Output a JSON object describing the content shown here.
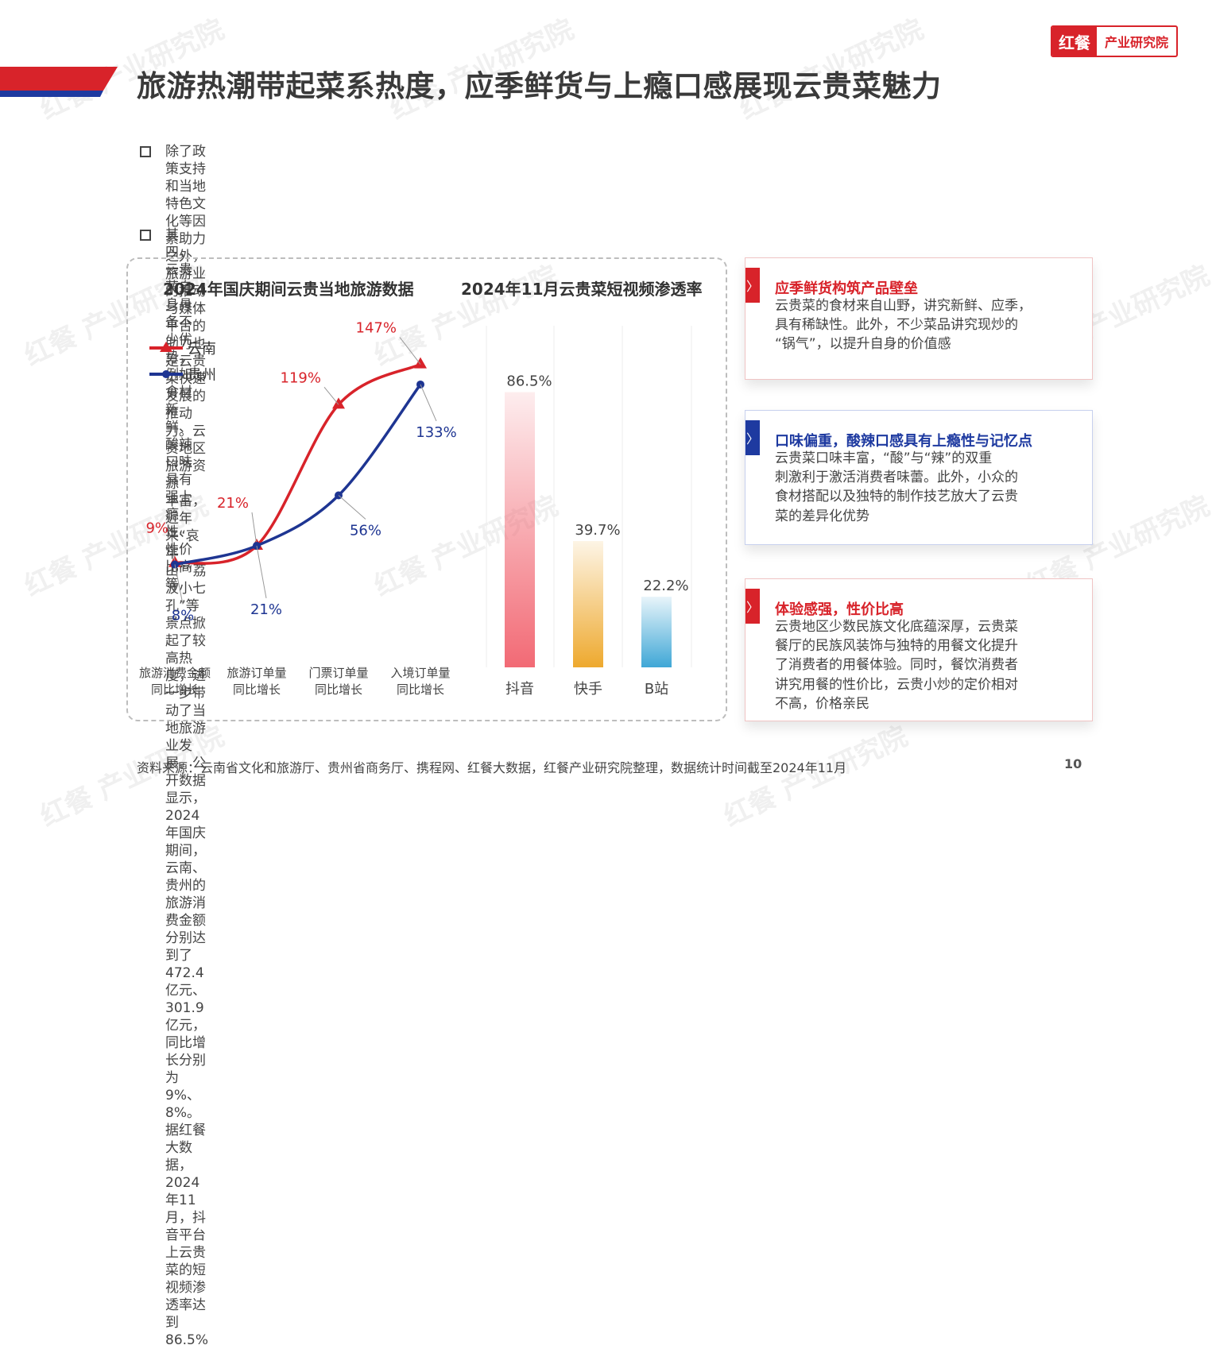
{
  "header": {
    "title": "旅游热潮带起菜系热度，应季鲜货与上瘾口感展现云贵菜魅力",
    "logo_mark": "红餐",
    "logo_text": "产业研究院",
    "accent_color": "#d8232a",
    "accent_secondary": "#1e3aa0"
  },
  "bullets": [
    {
      "lines": [
        "除了政策支持和当地特色文化等因素助力之外，旅游业的推动与媒体平台的助力也是云贵菜快速发展的推动力。云贵地区旅游资源",
        "丰富，近年来“哀牢山”“荔波小七孔”等景点掀起了较高热度，进一步带动了当地旅游业发展。公开数据显示，2024年国庆期间，",
        "云南、贵州的旅游消费金额分别达到了472.4亿元、301.9亿元，同比增长分别为9%、8%。据红餐大数据，2024年11月，抖音平台",
        "上云贵菜的短视频渗透率达到86.5%"
      ]
    },
    {
      "lines": [
        "其四，云贵菜自身具备不少优势，例如食材新鲜、酸辣口味具有强上瘾性、性价比高等"
      ]
    }
  ],
  "chart_data": [
    {
      "type": "line",
      "title": "2024年国庆期间云贵当地旅游数据",
      "categories": [
        [
          "旅游消费金额",
          "同比增长"
        ],
        [
          "旅游订单量",
          "同比增长"
        ],
        [
          "门票订单量",
          "同比增长"
        ],
        [
          "入境订单量",
          "同比增长"
        ]
      ],
      "series": [
        {
          "name": "云南",
          "values": [
            9,
            21,
            119,
            147
          ],
          "labels": [
            "9%",
            "21%",
            "119%",
            "147%"
          ],
          "color": "#d8232a",
          "marker": "triangle"
        },
        {
          "name": "贵州",
          "values": [
            8,
            21,
            56,
            133
          ],
          "labels": [
            "8%",
            "21%",
            "56%",
            "133%"
          ],
          "color": "#1e3592",
          "marker": "circle"
        }
      ],
      "legend_position": "top-left",
      "ylim": [
        0,
        160
      ],
      "grid": false
    },
    {
      "type": "bar",
      "title": "2024年11月云贵菜短视频渗透率",
      "categories": [
        "抖音",
        "快手",
        "B站"
      ],
      "values": [
        86.5,
        39.7,
        22.2
      ],
      "labels": [
        "86.5%",
        "39.7%",
        "22.2%"
      ],
      "colors": [
        "#f26a75",
        "#eea92e",
        "#3fa7d6"
      ],
      "ylim": [
        0,
        100
      ],
      "grid": true
    }
  ],
  "cards": [
    {
      "title": "应季鲜货构筑产品壁垒",
      "color": "#d8232a",
      "tab_icon": "chevron-right",
      "tab_glyph": "〉",
      "body": [
        "云贵菜的食材来自山野，讲究新鲜、应季，",
        "具有稀缺性。此外，不少菜品讲究现炒的",
        "“锅气”，以提升自身的价值感"
      ]
    },
    {
      "title": "口味偏重，酸辣口感具有上瘾性与记忆点",
      "color": "#1e3aa0",
      "tab_icon": "chevron-right",
      "tab_glyph": "〉",
      "body": [
        "云贵菜口味丰富，“酸”与“辣”的双重",
        "刺激利于激活消费者味蕾。此外，小众的",
        "食材搭配以及独特的制作技艺放大了云贵",
        "菜的差异化优势"
      ]
    },
    {
      "title": "体验感强，性价比高",
      "color": "#d8232a",
      "tab_icon": "chevron-right",
      "tab_glyph": "〉",
      "body": [
        "云贵地区少数民族文化底蕴深厚，云贵菜",
        "餐厅的民族风装饰与独特的用餐文化提升",
        "了消费者的用餐体验。同时，餐饮消费者",
        "讲究用餐的性价比，云贵小炒的定价相对",
        "不高，价格亲民"
      ]
    }
  ],
  "footer": {
    "source": "资料来源：云南省文化和旅游厅、贵州省商务厅、携程网、红餐大数据，红餐产业研究院整理，数据统计时间截至2024年11月",
    "page": "10"
  }
}
